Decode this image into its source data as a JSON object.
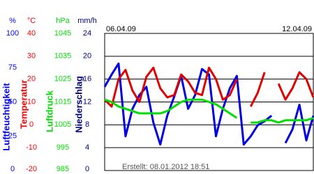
{
  "chart_data": {
    "type": "line",
    "x_labels": [
      "06.04.09",
      "12.04.09"
    ],
    "footer": "Erstellt: 08.01.2012 18:51",
    "grid": true,
    "axes": [
      {
        "unit": "%",
        "title": "Luftfeuchtigkeit",
        "color": "#0000ff",
        "ylim": [
          0,
          100
        ],
        "yticks": [
          0,
          25,
          50,
          75,
          100
        ]
      },
      {
        "unit": "°C",
        "title": "Temperatur",
        "color": "#ff0000",
        "ylim": [
          -20,
          40
        ],
        "yticks": [
          -20,
          -10,
          0,
          10,
          20,
          30,
          40
        ]
      },
      {
        "unit": "hPa",
        "title": "Luftdruck",
        "color": "#00dd00",
        "ylim": [
          985,
          1045
        ],
        "yticks": [
          985,
          995,
          1005,
          1015,
          1025,
          1035,
          1045
        ]
      },
      {
        "unit": "mm/h",
        "title": "Niederschlag",
        "color": "#000080",
        "ylim": [
          0,
          24
        ],
        "yticks": [
          0,
          4,
          8,
          12,
          16,
          20,
          24
        ]
      }
    ],
    "series": [
      {
        "color": "#0000e0",
        "axis": 0,
        "values": [
          61,
          70,
          78,
          25,
          45,
          55,
          61,
          35,
          19,
          40,
          54,
          69,
          45,
          55,
          74,
          70,
          25,
          45,
          60,
          69,
          19,
          25,
          33,
          36,
          40,
          null,
          20,
          30,
          48,
          22,
          40
        ]
      },
      {
        "color": "#e00000",
        "axis": 1,
        "values": [
          11,
          8,
          20,
          24,
          15,
          10,
          21,
          25,
          16,
          12,
          13,
          22,
          19,
          14,
          13,
          25,
          20,
          11,
          13,
          20,
          null,
          8,
          14,
          23,
          null,
          18,
          11,
          16,
          23,
          20,
          12
        ]
      },
      {
        "color": "#00e000",
        "axis": 2,
        "values": [
          1016,
          1015,
          1013,
          1012,
          1011,
          1010,
          1010,
          1010,
          1010,
          1011,
          1013,
          1015,
          1016,
          1016,
          1016,
          1015,
          1014,
          1012,
          1010,
          1008,
          null,
          1006,
          1006,
          1007,
          1007,
          1006,
          1007,
          1007,
          1007,
          1007,
          1008
        ]
      }
    ]
  }
}
